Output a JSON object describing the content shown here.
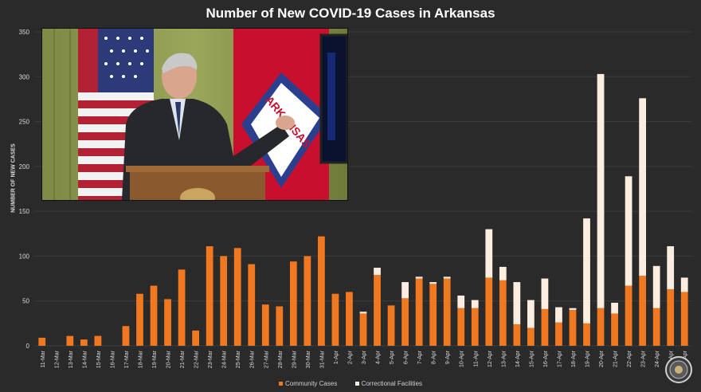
{
  "colors": {
    "background": "#2a2a2a",
    "grid": "#3c3c3c",
    "community": "#f07820",
    "correctional": "#fbeee0",
    "text": "#d9d9d9"
  },
  "video": {
    "banner_text": "ARKANSAS"
  },
  "chart_data": {
    "type": "bar",
    "stacked": true,
    "title": "Number of New COVID-19 Cases in Arkansas",
    "xlabel": "",
    "ylabel": "NUMBER OF NEW CASES",
    "ylim": [
      0,
      350
    ],
    "yticks": [
      0,
      50,
      100,
      150,
      200,
      250,
      300,
      350
    ],
    "grid": true,
    "legend_position": "bottom",
    "categories": [
      "11-Mar",
      "12-Mar",
      "13-Mar",
      "14-Mar",
      "15-Mar",
      "16-Mar",
      "17-Mar",
      "18-Mar",
      "19-Mar",
      "20-Mar",
      "21-Mar",
      "22-Mar",
      "23-Mar",
      "24-Mar",
      "25-Mar",
      "26-Mar",
      "27-Mar",
      "28-Mar",
      "29-Mar",
      "30-Mar",
      "31-Mar",
      "1-Apr",
      "2-Apr",
      "3-Apr",
      "4-Apr",
      "5-Apr",
      "6-Apr",
      "7-Apr",
      "8-Apr",
      "9-Apr",
      "10-Apr",
      "11-Apr",
      "12-Apr",
      "13-Apr",
      "14-Apr",
      "15-Apr",
      "16-Apr",
      "17-Apr",
      "18-Apr",
      "19-Apr",
      "20-Apr",
      "21-Apr",
      "22-Apr",
      "23-Apr",
      "24-Apr",
      "25-Apr",
      "26-Apr"
    ],
    "series": [
      {
        "name": "Community Cases",
        "values": [
          9,
          0,
          11,
          7,
          11,
          0,
          22,
          58,
          67,
          52,
          85,
          17,
          111,
          100,
          109,
          91,
          46,
          44,
          94,
          100,
          122,
          58,
          60,
          36,
          79,
          45,
          53,
          75,
          69,
          75,
          42,
          42,
          76,
          73,
          24,
          20,
          41,
          26,
          40,
          25,
          42,
          36,
          67,
          78,
          42,
          63,
          60
        ]
      },
      {
        "name": "Correctional Facilities",
        "values": [
          0,
          0,
          0,
          0,
          0,
          0,
          0,
          0,
          0,
          0,
          0,
          0,
          0,
          0,
          0,
          0,
          0,
          0,
          0,
          0,
          0,
          0,
          0,
          2,
          8,
          0,
          18,
          2,
          2,
          2,
          14,
          9,
          54,
          15,
          47,
          31,
          34,
          17,
          2,
          117,
          261,
          12,
          122,
          198,
          47,
          48,
          16
        ]
      }
    ]
  }
}
